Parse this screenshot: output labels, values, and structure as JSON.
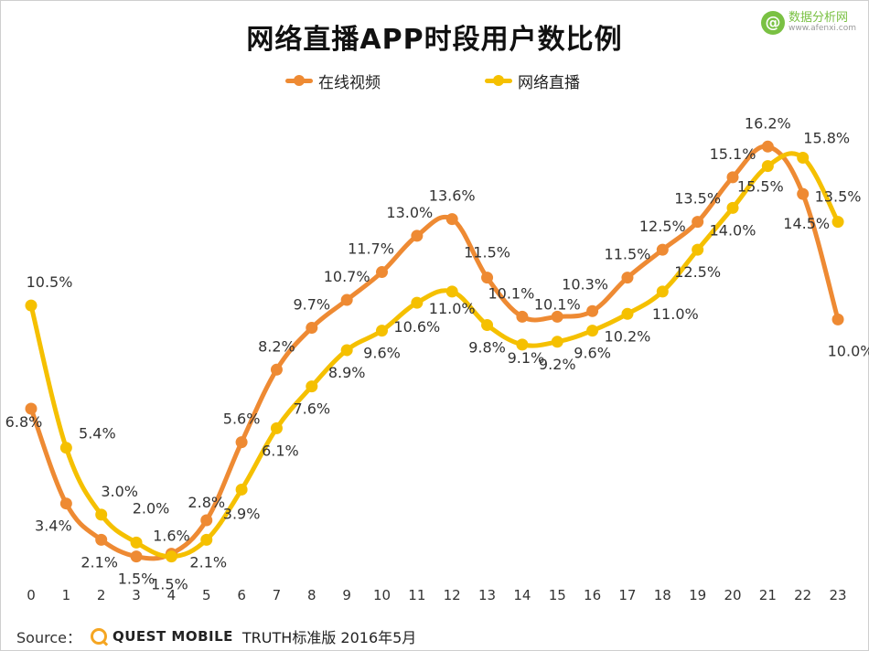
{
  "title": "网络直播APP时段用户数比例",
  "watermark": {
    "logo": "@",
    "name": "数据分析网",
    "url": "www.afenxi.com",
    "color": "#7ac143"
  },
  "footer": {
    "source_label": "Source：",
    "brand": "QUEST MOBILE",
    "note": "TRUTH标准版 2016年5月"
  },
  "chart_data": {
    "type": "line",
    "title": "网络直播APP时段用户数比例",
    "xlabel": "",
    "ylabel": "",
    "legend_position": "top-center",
    "grid": false,
    "categories": [
      "0",
      "1",
      "2",
      "3",
      "4",
      "5",
      "6",
      "7",
      "8",
      "9",
      "10",
      "11",
      "12",
      "13",
      "14",
      "15",
      "16",
      "17",
      "18",
      "19",
      "20",
      "21",
      "22",
      "23"
    ],
    "series": [
      {
        "name": "在线视频",
        "color": "#ee8a33",
        "values": [
          6.8,
          3.4,
          2.1,
          1.5,
          1.6,
          2.8,
          5.6,
          8.2,
          9.7,
          10.7,
          11.7,
          13.0,
          13.6,
          11.5,
          10.1,
          10.1,
          10.3,
          11.5,
          12.5,
          13.5,
          15.1,
          16.2,
          14.5,
          10.0
        ],
        "labels": [
          "6.8%",
          "3.4%",
          "2.1%",
          "1.5%",
          "1.6%",
          "2.8%",
          "5.6%",
          "8.2%",
          "9.7%",
          "10.7%",
          "11.7%",
          "13.0%",
          "13.6%",
          "11.5%",
          "10.1%",
          "10.1%",
          "10.3%",
          "11.5%",
          "12.5%",
          "13.5%",
          "15.1%",
          "16.2%",
          "14.5%",
          "10.0%"
        ]
      },
      {
        "name": "网络直播",
        "color": "#f5c000",
        "values": [
          10.5,
          5.4,
          3.0,
          2.0,
          1.5,
          2.1,
          3.9,
          6.1,
          7.6,
          8.9,
          9.6,
          10.6,
          11.0,
          9.8,
          9.1,
          9.2,
          9.6,
          10.2,
          11.0,
          12.5,
          14.0,
          15.5,
          15.8,
          13.5
        ],
        "labels": [
          "10.5%",
          "5.4%",
          "3.0%",
          "2.0%",
          "1.5%",
          "2.1%",
          "3.9%",
          "6.1%",
          "7.6%",
          "8.9%",
          "9.6%",
          "10.6%",
          "11.0%",
          "9.8%",
          "9.1%",
          "9.2%",
          "9.6%",
          "10.2%",
          "11.0%",
          "12.5%",
          "14.0%",
          "15.5%",
          "15.8%",
          "13.5%"
        ]
      }
    ]
  }
}
